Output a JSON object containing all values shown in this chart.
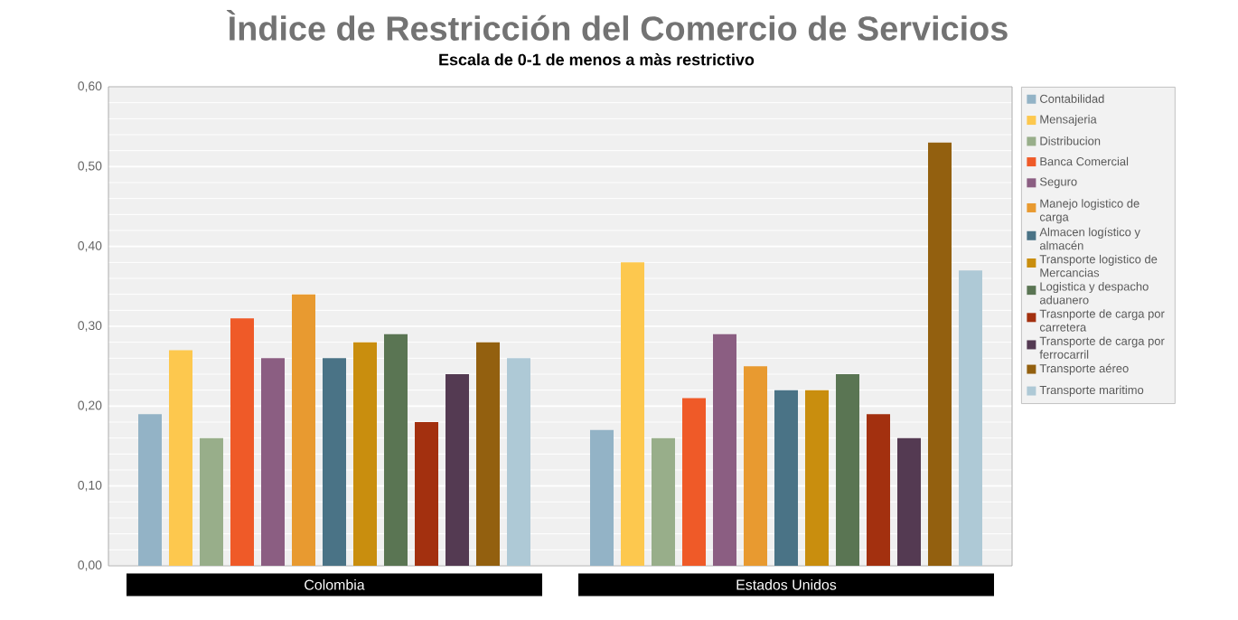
{
  "chart_data": {
    "type": "bar",
    "title": "Ìndice de Restricción del Comercio de Servicios",
    "subtitle": "Escala de 0-1 de menos a màs restrictivo",
    "categories": [
      "Colombia",
      "Estados Unidos"
    ],
    "series": [
      {
        "name": "Contabilidad",
        "color": "#93b3c6",
        "values": [
          0.19,
          0.17
        ]
      },
      {
        "name": "Mensajeria",
        "color": "#fdc84e",
        "values": [
          0.27,
          0.38
        ]
      },
      {
        "name": "Distribucion",
        "color": "#98ae8a",
        "values": [
          0.16,
          0.16
        ]
      },
      {
        "name": "Banca Comercial",
        "color": "#ef5a28",
        "values": [
          0.31,
          0.21
        ]
      },
      {
        "name": "Seguro",
        "color": "#8b5e82",
        "values": [
          0.26,
          0.29
        ]
      },
      {
        "name": "Manejo logistico de carga",
        "color": "#e89a30",
        "values": [
          0.34,
          0.25
        ]
      },
      {
        "name": "Almacen logístico y almacén",
        "color": "#4a7386",
        "values": [
          0.26,
          0.22
        ]
      },
      {
        "name": "Transporte logistico de Mercancias",
        "color": "#c98e0e",
        "values": [
          0.28,
          0.22
        ]
      },
      {
        "name": "Logistica y despacho aduanero",
        "color": "#5a7553",
        "values": [
          0.29,
          0.24
        ]
      },
      {
        "name": "Trasnporte de carga por carretera",
        "color": "#a3300f",
        "values": [
          0.18,
          0.19
        ]
      },
      {
        "name": "Transporte de carga por ferrocarril",
        "color": "#543a52",
        "values": [
          0.24,
          0.16
        ]
      },
      {
        "name": "Transporte aéreo",
        "color": "#93600f",
        "values": [
          0.28,
          0.53
        ]
      },
      {
        "name": "Transporte maritimo",
        "color": "#aec9d6",
        "values": [
          0.26,
          0.37
        ]
      }
    ],
    "ylim": [
      0,
      0.6
    ],
    "yticks": [
      {
        "value": 0,
        "label": "0,00"
      },
      {
        "value": 0.1,
        "label": "0,10"
      },
      {
        "value": 0.2,
        "label": "0,20"
      },
      {
        "value": 0.3,
        "label": "0,30"
      },
      {
        "value": 0.4,
        "label": "0,40"
      },
      {
        "value": 0.5,
        "label": "0,50"
      },
      {
        "value": 0.6,
        "label": "0,60"
      }
    ],
    "grid": "y",
    "legend": "right"
  }
}
